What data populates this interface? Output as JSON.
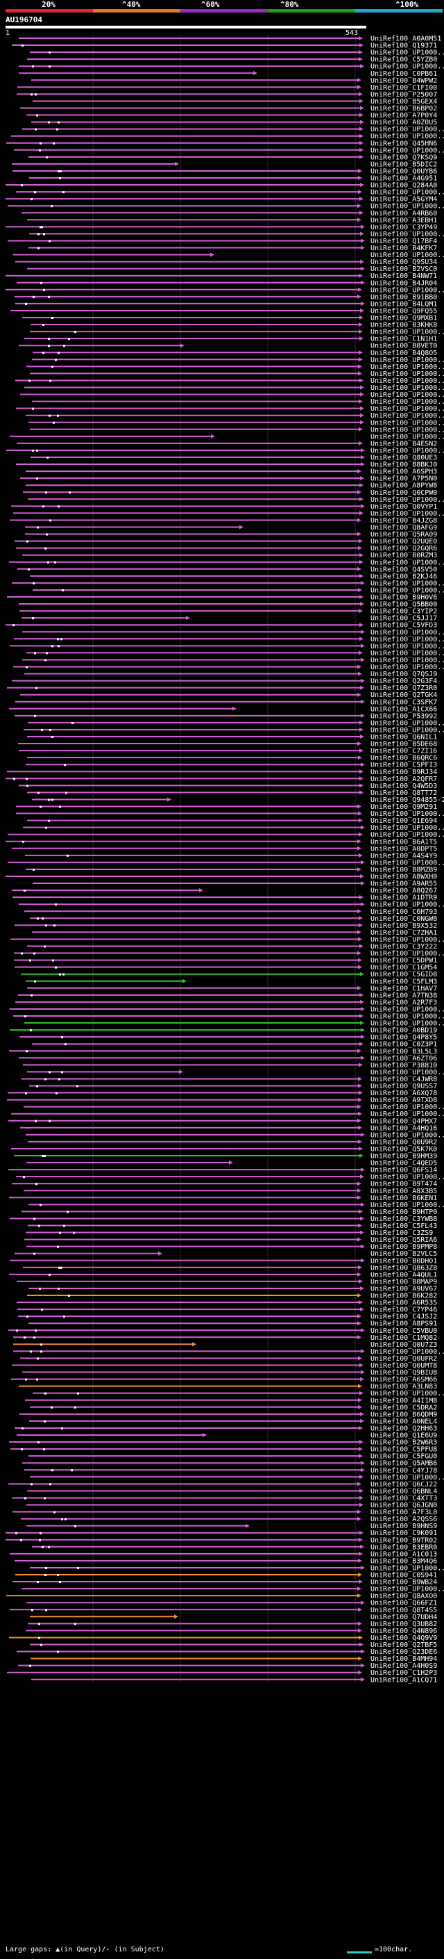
{
  "legend": {
    "percentages": [
      "20%",
      "^40%",
      "^60%",
      "^80%",
      "^100%"
    ],
    "colors": [
      "#e0242c",
      "#e07a1e",
      "#9b27c4",
      "#1e9c1e",
      "#1fa9cf"
    ]
  },
  "query": {
    "title": "AU196704",
    "start": "1",
    "end": "543"
  },
  "hit_colors": {
    "magenta": "#d65ed8",
    "green": "#2fbf2f",
    "orange": "#f0902c"
  },
  "hits": [
    "UniRef100_A0A0M51",
    "UniRef100_Q19371",
    "UniRef100_UP1000..",
    "UniRef100_C5YZB0",
    "UniRef100_UP1000..",
    "UniRef100_C0PB61",
    "UniRef100_B4WPW2",
    "UniRef100_C1FI00",
    "UniRef100_P25007",
    "UniRef100_B5GEX4",
    "UniRef100_B6BP02",
    "UniRef100_A7P0Y4",
    "UniRef100_A0Z0U5",
    "UniRef100_UP1000..",
    "UniRef100_UP1000..",
    "UniRef100_Q45HN6",
    "UniRef100_UP1000..",
    "UniRef100_Q7KSQ9",
    "UniRef100_B5DIC2",
    "UniRef100_Q0UYB6",
    "UniRef100_A4G951",
    "UniRef100_Q284A0",
    "UniRef100_UP1000..",
    "UniRef100_A5GYM4",
    "UniRef100_UP1000..",
    "UniRef100_A4RB60",
    "UniRef100_A3EBH1",
    "UniRef100_C3YP49",
    "UniRef100_UP1000..",
    "UniRef100_Q17BF4",
    "UniRef100_B4KFK7",
    "UniRef100_UP1000..",
    "UniRef100_Q9SU34",
    "UniRef100_B2VSC0",
    "UniRef100_B4NW71",
    "UniRef100_B4JR04",
    "UniRef100_UP1000..",
    "UniRef100_B91BB0",
    "UniRef100_B4LQM1",
    "UniRef100_Q9FQ55",
    "UniRef100_Q9MXB1",
    "UniRef100_B3KHK8",
    "UniRef100_UP1000..",
    "UniRef100_C1N1H1",
    "UniRef100_B8VET0",
    "UniRef100_B4Q8O5",
    "UniRef100_UP1000..",
    "UniRef100_UP1000..",
    "UniRef100_UP1000..",
    "UniRef100_UP1000..",
    "UniRef100_UP1000..",
    "UniRef100_UP1000..",
    "UniRef100_UP1000..",
    "UniRef100_UP1000..",
    "UniRef100_UP1000..",
    "UniRef100_UP1000..",
    "UniRef100_UP1000..",
    "UniRef100_UP1000..",
    "UniRef100_B4ESN2",
    "UniRef100_UP1000..",
    "UniRef100_Q80UE3",
    "UniRef100_B8BKJ0",
    "UniRef100_A6SPH3",
    "UniRef100_A7P5N0",
    "UniRef100_A8PYW8",
    "UniRef100_Q0CPW0",
    "UniRef100_UP1000..",
    "UniRef100_Q0VYP1",
    "UniRef100_UP1000..",
    "UniRef100_B4JZG8",
    "UniRef100_Q8AFG9",
    "UniRef100_Q5RA09",
    "UniRef100_Q2UQE0",
    "UniRef100_Q2GQR6",
    "UniRef100_B0RZM3",
    "UniRef100_UP1000..",
    "UniRef100_Q4SV50",
    "UniRef100_B2KJ46",
    "UniRef100_UP1000..",
    "UniRef100_UP1000..",
    "UniRef100_B9H0V6",
    "UniRef100_Q5BB00",
    "UniRef100_C3YIP2",
    "UniRef100_C5JJ17",
    "UniRef100_C5VFD3",
    "UniRef100_UP1000..",
    "UniRef100_UP1000..",
    "UniRef100_UP1000..",
    "UniRef100_UP1000..",
    "UniRef100_UP1000..",
    "UniRef100_UP1000..",
    "UniRef100_Q7QSJ9",
    "UniRef100_Q2G3F4",
    "UniRef100_Q7Z3R0",
    "UniRef100_Q2TGK4",
    "UniRef100_C3SFK7",
    "UniRef100_A1CX66",
    "UniRef100_P53992",
    "UniRef100_UP1000..",
    "UniRef100_UP1000..",
    "UniRef100_Q6NIL1",
    "UniRef100_B5DE68",
    "UniRef100_C7ZI16",
    "UniRef100_B6QRC6",
    "UniRef100_C5PFI3",
    "UniRef100_B9RJ34",
    "UniRef100_A2QFR7",
    "UniRef100_Q4W5D3",
    "UniRef100_Q8TT72",
    "UniRef100_Q94855-2",
    "UniRef100_Q9M291",
    "UniRef100_UP1000..",
    "UniRef100_Q1E694",
    "UniRef100_UP1000..",
    "UniRef100_UP1000..",
    "UniRef100_B6A1T5",
    "UniRef100_A0DPT5",
    "UniRef100_A4S4Y9",
    "UniRef100_UP1000..",
    "UniRef100_B8MZB9",
    "UniRef100_A8WXH0",
    "UniRef100_A9AR55",
    "UniRef100_A8Q267",
    "UniRef100_A1DTR9",
    "UniRef100_UP1000..",
    "UniRef100_C6H793",
    "UniRef100_C0NGW8",
    "UniRef100_B9X532",
    "UniRef100_C7ZHA1",
    "UniRef100_UP1000..",
    "UniRef100_C3Y222",
    "UniRef100_UP1000..",
    "UniRef100_C5DPW1",
    "UniRef100_C1GM54",
    "UniRef100_C5GID8",
    "UniRef100_C5FLM3",
    "UniRef100_C1HAV7",
    "UniRef100_A7TN38",
    "UniRef100_A2R7F3",
    "UniRef100_UP1000..",
    "UniRef100_UP1000..",
    "UniRef100_UP1000..",
    "UniRef100_A0BD19",
    "UniRef100_Q4P8Y5",
    "UniRef100_C0Z3P1",
    "UniRef100_B3L5L3",
    "UniRef100_A6ZT06",
    "UniRef100_P38810",
    "UniRef100_UP1000..",
    "UniRef100_C4JWR8",
    "UniRef100_Q9USS7",
    "UniRef100_A6XQ78",
    "UniRef100_A9TXD8",
    "UniRef100_UP1000..",
    "UniRef100_UP1000..",
    "UniRef100_Q4PHX7",
    "UniRef100_A4HQ16",
    "UniRef100_UP1000..",
    "UniRef100_Q0U9R2",
    "UniRef100_Q5K7K0",
    "UniRef100_B9HM39",
    "UniRef100_C4QED5",
    "UniRef100_Q6FS14",
    "UniRef100_UP1000..",
    "UniRef100_B9T474",
    "UniRef100_A8X3B5",
    "UniRef100_B6KEN1",
    "UniRef100_UP1000..",
    "UniRef100_B9HTP0",
    "UniRef100_C3YWB8",
    "UniRef100_C5FL43",
    "UniRef100_C3ZS9",
    "UniRef100_Q5RIA6",
    "UniRef100_B9PMP8",
    "UniRef100_B2VLC5",
    "UniRef100_B0DHO1",
    "UniRef100_Q863Z8",
    "UniRef100_A4QUL1",
    "UniRef100_B8MAP9",
    "UniRef100_A9UV67",
    "UniRef100_B6K282",
    "UniRef100_A6R535",
    "UniRef100_C7YP46",
    "UniRef100_C4JSJ2",
    "UniRef100_A8PS91",
    "UniRef100_C5VBU0",
    "UniRef100_C1MQ82",
    "UniRef100_Q0U7Z3",
    "UniRef100_UP1000..",
    "UniRef100_Q0UFR2",
    "UniRef100_Q0UMT8",
    "UniRef100_Q9BIU8",
    "UniRef100_A6SM66",
    "UniRef100_A3LN83",
    "UniRef100_UP1000..",
    "UniRef100_A4I1M8",
    "UniRef100_C5DRA2",
    "UniRef100_B6QDM9",
    "UniRef100_A0NEL4",
    "UniRef100_Q2HH63",
    "UniRef100_Q1E6U9",
    "UniRef100_B2W6R3",
    "UniRef100_C5PFU8",
    "UniRef100_C5FGU0",
    "UniRef100_Q5AMB6",
    "UniRef100_C4YJ78",
    "UniRef100_UP1000..",
    "UniRef100_Q6CJ22",
    "UniRef100_Q6BNL4",
    "UniRef100_C4XTT3",
    "UniRef100_Q6JGN0",
    "UniRef100_A7F3L0",
    "UniRef100_A2QSS6",
    "UniRef100_B9HNS9",
    "UniRef100_C9K091",
    "UniRef100_B9TR02",
    "UniRef100_B3EBR0",
    "UniRef100_A1C013",
    "UniRef100_B3M4Q6",
    "UniRef100_UP1000..",
    "UniRef100_C0S941",
    "UniRef100_B9WB24",
    "UniRef100_UP1000..",
    "UniRef100_Q8AXO0",
    "UniRef100_Q66FZ1",
    "UniRef100_Q8T4S5",
    "UniRef100_Q7UDH4",
    "UniRef100_Q3UB82",
    "UniRef100_Q4N896",
    "UniRef100_Q4Q9V9",
    "UniRef100_Q2TBF5",
    "UniRef100_Q23DE6",
    "UniRef100_B4MH94",
    "UniRef100_A4H0S9",
    "UniRef100_C1H2P3",
    "UniRef100_A1CQ71"
  ],
  "footer": {
    "text": "Large gaps: ▲(in Query)/- (in Subject)",
    "scale_label": "=100char."
  }
}
